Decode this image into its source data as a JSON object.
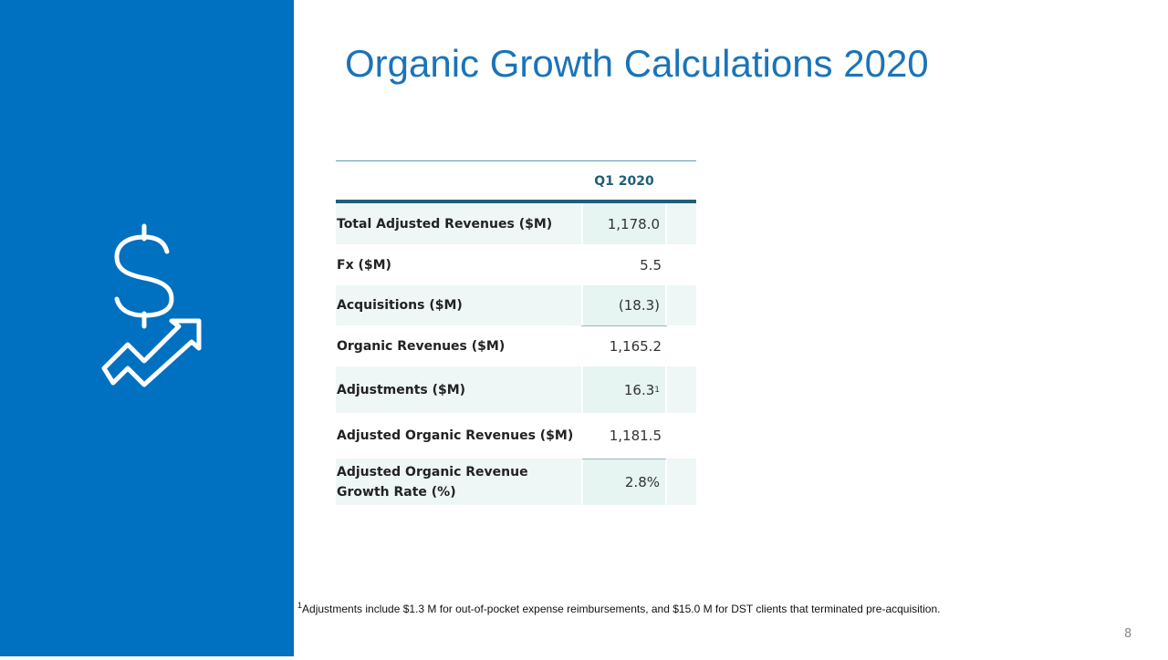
{
  "title": "Organic Growth Calculations 2020",
  "table": {
    "header": "Q1 2020",
    "rows": [
      {
        "label": "Total Adjusted Revenues ($M)",
        "value": "1,178.0"
      },
      {
        "label": "Fx ($M)",
        "value": "5.5"
      },
      {
        "label": "Acquisitions ($M)",
        "value": "(18.3)"
      },
      {
        "label": "Organic Revenues ($M)",
        "value": "1,165.2"
      },
      {
        "label": "Adjustments ($M)",
        "value": "16.3",
        "note": "1"
      },
      {
        "label": "Adjusted Organic Revenues ($M)",
        "value": "1,181.5"
      },
      {
        "label": "Adjusted Organic Revenue Growth Rate (%)",
        "value": "2.8%"
      }
    ]
  },
  "footnote": {
    "marker": "1",
    "text": "Adjustments include $1.3 M for out-of-pocket expense reimbursements, and $15.0 M for DST clients that terminated pre-acquisition."
  },
  "page_number": "8"
}
